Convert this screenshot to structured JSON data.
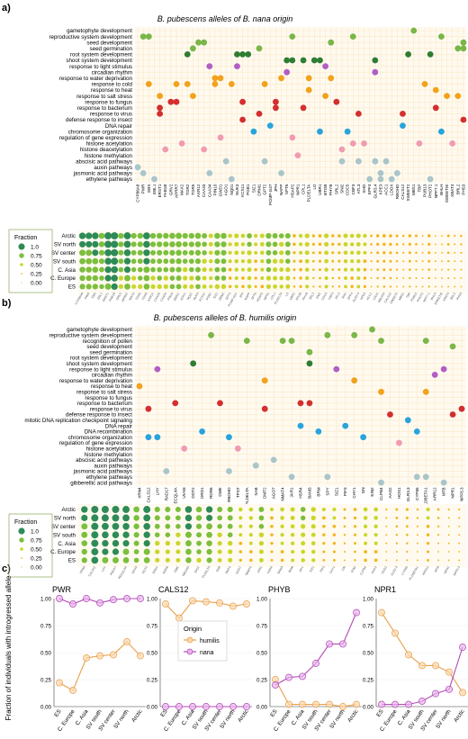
{
  "panel_labels": [
    "a)",
    "b)",
    "c)"
  ],
  "colors": {
    "reproduction": "#7ab648",
    "development": "#2e7d32",
    "light": "#b15fc4",
    "abiotic": "#f2a21c",
    "biotic": "#d32f2f",
    "dna": "#29a3dc",
    "epigenetic": "#f19bb0",
    "hormone": "#a9c5c9",
    "grid": "#fbe8c6",
    "humilis": "#e8a04a",
    "nana": "#b24bb5"
  },
  "chart_data": [
    {
      "type": "scatter",
      "title": "B. pubescens alleles of B. nana origin",
      "processes": [
        {
          "label": "gametophyte development",
          "group": "reproduction"
        },
        {
          "label": "reproductive system development",
          "group": "reproduction"
        },
        {
          "label": "seed development",
          "group": "reproduction"
        },
        {
          "label": "seed germination",
          "group": "reproduction"
        },
        {
          "label": "root system development",
          "group": "development"
        },
        {
          "label": "shoot system development",
          "group": "development"
        },
        {
          "label": "response to light stimulus",
          "group": "light"
        },
        {
          "label": "circadian rhythm",
          "group": "light"
        },
        {
          "label": "response to water deprivation",
          "group": "abiotic"
        },
        {
          "label": "response to cold",
          "group": "abiotic"
        },
        {
          "label": "response to heat",
          "group": "abiotic"
        },
        {
          "label": "response to salt stress",
          "group": "abiotic"
        },
        {
          "label": "response to fungus",
          "group": "biotic"
        },
        {
          "label": "response to bacterium",
          "group": "biotic"
        },
        {
          "label": "response to virus",
          "group": "biotic"
        },
        {
          "label": "defense response to insect",
          "group": "biotic"
        },
        {
          "label": "DNA repair",
          "group": "dna"
        },
        {
          "label": "chromosome organization",
          "group": "dna"
        },
        {
          "label": "regulation of gene expression",
          "group": "epigenetic"
        },
        {
          "label": "histone acetylation",
          "group": "epigenetic"
        },
        {
          "label": "histone deacetylation",
          "group": "epigenetic"
        },
        {
          "label": "histone methylation",
          "group": "epigenetic"
        },
        {
          "label": "abscisic acid pathways",
          "group": "hormone"
        },
        {
          "label": "auxin pathways",
          "group": "hormone"
        },
        {
          "label": "jasmonic acid pathways",
          "group": "hormone"
        },
        {
          "label": "ethylene pathways",
          "group": "hormone"
        }
      ],
      "genes": [
        "CYP86A8",
        "PWR",
        "EBS",
        "EBL1",
        "ERST1",
        "FAB1B",
        "GRV2",
        "APRR7",
        "MAX2",
        "TGR2",
        "TGR5",
        "AXR12",
        "CAA33",
        "CAA34",
        "PIN10",
        "GWD1",
        "AGO1",
        "NQ01",
        "NUK3",
        "KCS11",
        "PGB1",
        "SIZ1",
        "DRM1",
        "GPT2",
        "PCMP-G47",
        "JPH",
        "NAPP",
        "SPT6",
        "HSAP2",
        "NPR1",
        "CPL1",
        "PLDELTA",
        "LD",
        "UBR1",
        "BTOB",
        "PHYB",
        "SRL2",
        "SNI2",
        "CDC5",
        "CBF3",
        "ATL3",
        "SHO",
        "EPF4",
        "GLR3.4",
        "KPE3",
        "ACC1",
        "LDOX",
        "RBOHD",
        "CALS12",
        "SWEET2",
        "MBS1",
        "TBP",
        "PUB13",
        "PHOT2",
        "NPF7.1",
        "BHLH",
        "SWEETIE",
        "XBAT4",
        "BRL2",
        "PHS3"
      ],
      "populations": [
        "Arctic",
        "SV north",
        "SV center",
        "SV south",
        "C. Asia",
        "C. Europe",
        "ES"
      ],
      "size_legend": {
        "title": "Fraction",
        "values": [
          1.0,
          0.75,
          0.5,
          0.25,
          0.0
        ]
      }
    },
    {
      "type": "scatter",
      "title": "B. pubescens alleles of B. humilis origin",
      "processes": [
        {
          "label": "gametophyte development",
          "group": "reproduction"
        },
        {
          "label": "reproductive system development",
          "group": "reproduction"
        },
        {
          "label": "recognition of pollen",
          "group": "reproduction"
        },
        {
          "label": "seed development",
          "group": "reproduction"
        },
        {
          "label": "seed germination",
          "group": "reproduction"
        },
        {
          "label": "root system development",
          "group": "development"
        },
        {
          "label": "shoot system development",
          "group": "development"
        },
        {
          "label": "response to light stimulus",
          "group": "light"
        },
        {
          "label": "circadian rhythm",
          "group": "light"
        },
        {
          "label": "response to water deprivation",
          "group": "abiotic"
        },
        {
          "label": "response to heat",
          "group": "abiotic"
        },
        {
          "label": "response to salt stress",
          "group": "abiotic"
        },
        {
          "label": "response to fungus",
          "group": "biotic"
        },
        {
          "label": "response to bacterium",
          "group": "biotic"
        },
        {
          "label": "response to virus",
          "group": "biotic"
        },
        {
          "label": "defense response to insect",
          "group": "biotic"
        },
        {
          "label": "mitotic DNA replication checkpoint signaling",
          "group": "dna"
        },
        {
          "label": "DNA repair",
          "group": "dna"
        },
        {
          "label": "DNA recombination",
          "group": "dna"
        },
        {
          "label": "chromosome organization",
          "group": "dna"
        },
        {
          "label": "regulation of gene expression",
          "group": "epigenetic"
        },
        {
          "label": "histone acetylation",
          "group": "epigenetic"
        },
        {
          "label": "histone methylation",
          "group": "epigenetic"
        },
        {
          "label": "abscisic acid pathways",
          "group": "hormone"
        },
        {
          "label": "auxin pathways",
          "group": "hormone"
        },
        {
          "label": "jasmonic acid pathways",
          "group": "hormone"
        },
        {
          "label": "ethylene pathways",
          "group": "hormone"
        },
        {
          "label": "gibberellic acid pathways",
          "group": "hormone"
        }
      ],
      "genes": [
        "XRN4",
        "CALS12",
        "LHY",
        "RAD17",
        "RECQL4A",
        "UVH3",
        "DOT2",
        "DRD1",
        "RDR6",
        "DME",
        "RBOHD",
        "TPST",
        "PLDELTA",
        "SAB",
        "DMT2",
        "AGO7",
        "NMAT4",
        "JAR1",
        "HSR4",
        "BAM3",
        "BRM",
        "SPY",
        "SIZ1",
        "PIF3",
        "CHY1",
        "GN",
        "EIN2",
        "CLPB4",
        "AAO2",
        "HOS1",
        "GLR3.3",
        "CYP85",
        "PLDBETA1",
        "ARR12",
        "MTB",
        "NPR1",
        "NPF6.3"
      ],
      "populations": [
        "Arctic",
        "SV north",
        "SV center",
        "SV south",
        "C. Asia",
        "C. Europe",
        "ES"
      ],
      "size_legend": {
        "title": "Fraction",
        "values": [
          1.0,
          0.75,
          0.5,
          0.25,
          0.0
        ]
      }
    },
    {
      "type": "line",
      "ylabel": "Fraction of individuals with introgressed allele",
      "x": [
        "ES",
        "C. Europe",
        "C. Asia",
        "SV south",
        "SV center",
        "SV north",
        "Arctic"
      ],
      "ylim": [
        0,
        1
      ],
      "yticks": [
        "0.00",
        "0.25",
        "0.50",
        "0.75",
        "1.00"
      ],
      "legend": {
        "title": "Origin",
        "entries": [
          "humilis",
          "nana"
        ]
      },
      "panels": [
        {
          "gene": "PWR",
          "humilis": [
            0.22,
            0.15,
            0.45,
            0.47,
            0.48,
            0.6,
            0.47
          ],
          "nana": [
            1.0,
            0.95,
            1.0,
            0.96,
            0.99,
            1.0,
            1.0
          ]
        },
        {
          "gene": "CALS12",
          "humilis": [
            0.95,
            0.82,
            0.98,
            0.97,
            0.96,
            0.93,
            0.95
          ],
          "nana": [
            0.0,
            0.0,
            0.0,
            0.0,
            0.0,
            0.0,
            0.0
          ]
        },
        {
          "gene": "PHYB",
          "humilis": [
            0.25,
            0.02,
            0.02,
            0.02,
            0.02,
            0.0,
            0.02
          ],
          "nana": [
            0.2,
            0.27,
            0.28,
            0.4,
            0.58,
            0.58,
            0.87
          ]
        },
        {
          "gene": "NPR1",
          "humilis": [
            0.87,
            0.68,
            0.48,
            0.38,
            0.38,
            0.32,
            0.13
          ],
          "nana": [
            0.02,
            0.02,
            0.02,
            0.05,
            0.12,
            0.16,
            0.55
          ]
        }
      ]
    }
  ]
}
